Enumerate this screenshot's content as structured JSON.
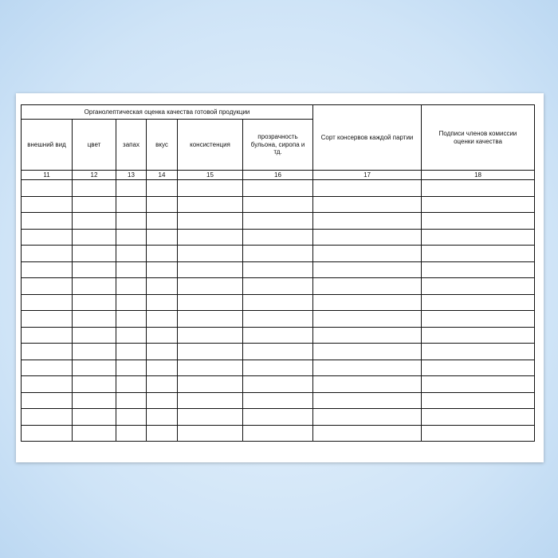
{
  "header": {
    "group": "Органолептическая оценка качества готовой продукции"
  },
  "columns": [
    {
      "label": "внешний вид",
      "number": "11"
    },
    {
      "label": "цвет",
      "number": "12"
    },
    {
      "label": "запах",
      "number": "13"
    },
    {
      "label": "вкус",
      "number": "14"
    },
    {
      "label": "консистенция",
      "number": "15"
    },
    {
      "label": "прозрачность бульона, сиропа и тд.",
      "number": "16"
    },
    {
      "label": "Сорт консервов каждой партии",
      "number": "17"
    },
    {
      "label": "Подписи членов комиссии оценки качества",
      "number": "18"
    }
  ]
}
